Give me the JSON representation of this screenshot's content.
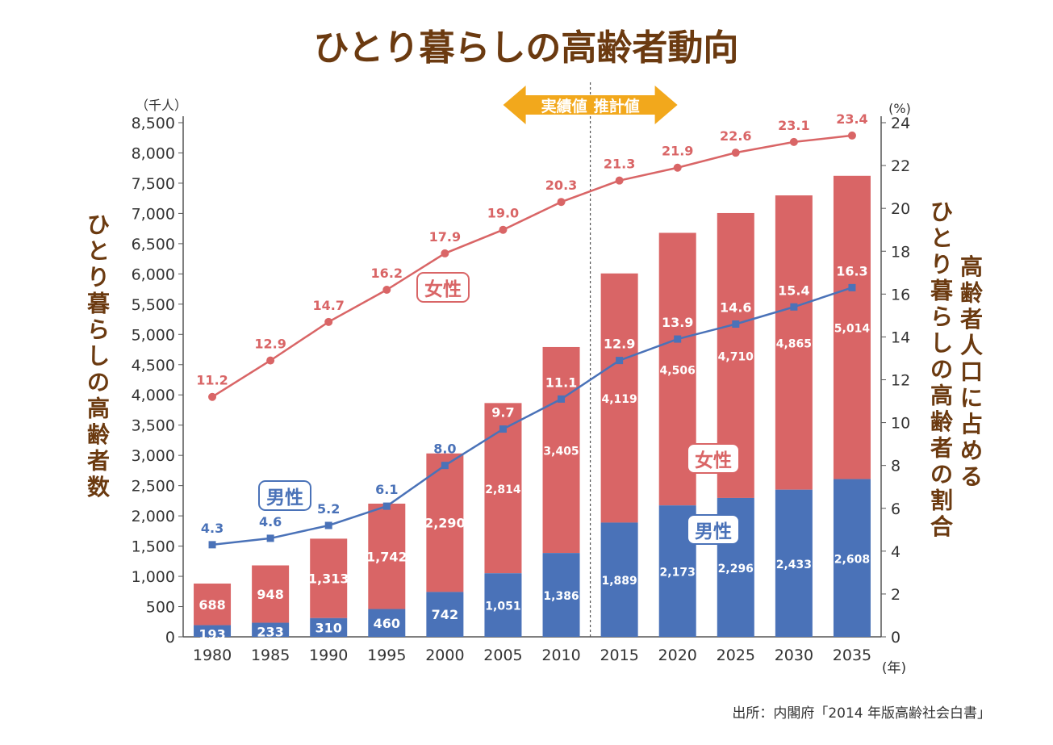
{
  "chart_data": {
    "type": "bar+line",
    "title": "ひとり暮らしの高齢者動向",
    "categories": [
      "1980",
      "1985",
      "1990",
      "1995",
      "2000",
      "2005",
      "2010",
      "2015",
      "2020",
      "2025",
      "2030",
      "2035"
    ],
    "series": [
      {
        "name": "男性",
        "kind": "stacked-bar",
        "axis": "left",
        "color": "#4a72b8",
        "values": [
          193,
          233,
          310,
          460,
          742,
          1051,
          1386,
          1889,
          2173,
          2296,
          2433,
          2608
        ],
        "labels": [
          "193",
          "233",
          "310",
          "460",
          "742",
          "1,051",
          "1,386",
          "1,889",
          "2,173",
          "2,296",
          "2,433",
          "2,608"
        ]
      },
      {
        "name": "女性",
        "kind": "stacked-bar",
        "axis": "left",
        "color": "#d96566",
        "values": [
          688,
          948,
          1313,
          1742,
          2290,
          2814,
          3405,
          4119,
          4506,
          4710,
          4865,
          5014
        ],
        "labels": [
          "688",
          "948",
          "1,313",
          "1,742",
          "2,290",
          "2,814",
          "3,405",
          "4,119",
          "4,506",
          "4,710",
          "4,865",
          "5,014"
        ]
      },
      {
        "name": "女性",
        "kind": "line",
        "axis": "right",
        "color": "#d96566",
        "values": [
          11.2,
          12.9,
          14.7,
          16.2,
          17.9,
          19.0,
          20.3,
          21.3,
          21.9,
          22.6,
          23.1,
          23.4
        ],
        "labels": [
          "11.2",
          "12.9",
          "14.7",
          "16.2",
          "17.9",
          "19.0",
          "20.3",
          "21.3",
          "21.9",
          "22.6",
          "23.1",
          "23.4"
        ]
      },
      {
        "name": "男性",
        "kind": "line",
        "axis": "right",
        "color": "#4a72b8",
        "values": [
          4.3,
          4.6,
          5.2,
          6.1,
          8.0,
          9.7,
          11.1,
          12.9,
          13.9,
          14.6,
          15.4,
          16.3
        ],
        "labels": [
          "4.3",
          "4.6",
          "5.2",
          "6.1",
          "8.0",
          "9.7",
          "11.1",
          "12.9",
          "13.9",
          "14.6",
          "15.4",
          "16.3"
        ]
      }
    ],
    "y_left": {
      "label": "ひとり暮らしの高齢者数",
      "unit": "（千人）",
      "min": 0,
      "max": 8500,
      "step": 500,
      "ticks": [
        "0",
        "500",
        "1,000",
        "1,500",
        "2,000",
        "2,500",
        "3,000",
        "3,500",
        "4,000",
        "4,500",
        "5,000",
        "5,500",
        "6,000",
        "6,500",
        "7,000",
        "7,500",
        "8,000",
        "8,500"
      ]
    },
    "y_right": {
      "label": "高齢者人口に占めるひとり暮らしの高齢者の割合",
      "label_line1": "高齢者人口に占める",
      "label_line2": "ひとり暮らしの高齢者の割合",
      "unit": "(%)",
      "min": 0,
      "max": 24,
      "step": 2,
      "ticks": [
        "0",
        "2",
        "4",
        "6",
        "8",
        "10",
        "12",
        "14",
        "16",
        "18",
        "20",
        "22",
        "24"
      ]
    },
    "x_unit": "(年)",
    "divider": {
      "left_label": "実績値",
      "right_label": "推計値"
    },
    "annotations": {
      "female_line": "女性",
      "male_line": "男性",
      "female_bar": "女性",
      "male_bar": "男性"
    },
    "source": "出所：内閣府「2014 年版高齢社会白書」"
  }
}
